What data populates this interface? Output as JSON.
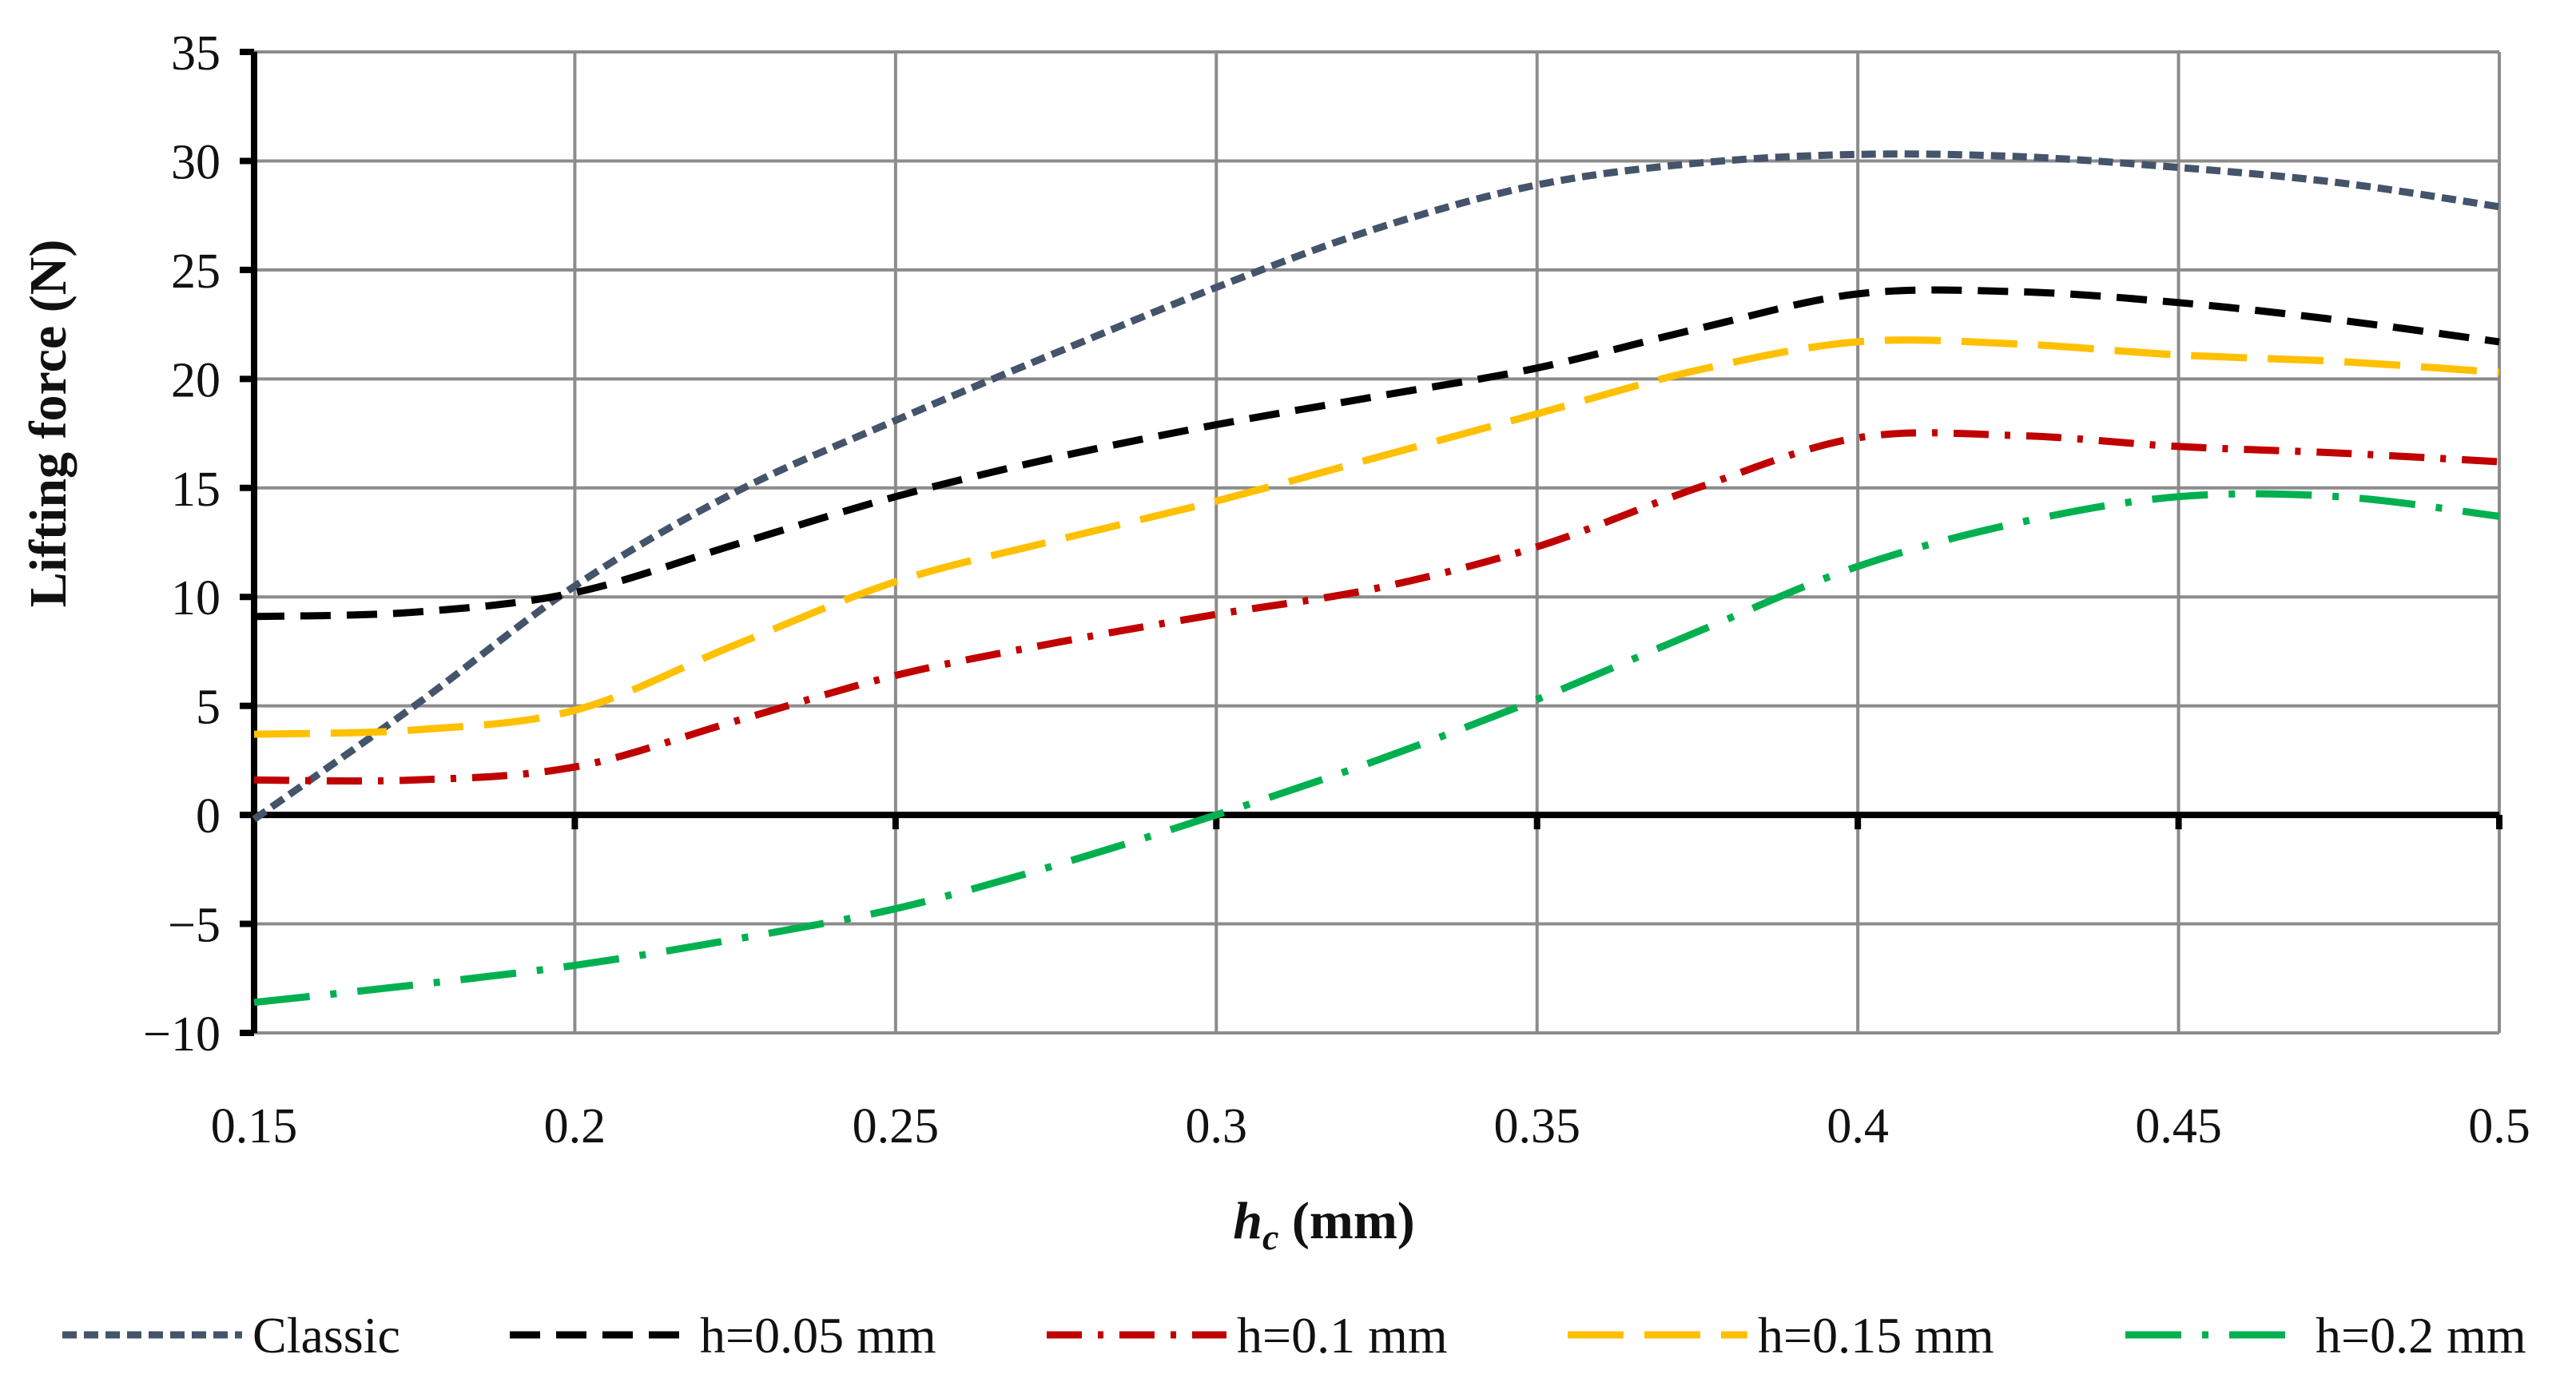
{
  "chart_data": {
    "type": "line",
    "title": "",
    "xlabel_italic": "h",
    "xlabel_sub": "c",
    "xlabel_unit": " (mm)",
    "ylabel": "Lifting force (N)",
    "xlim": [
      0.15,
      0.5
    ],
    "ylim": [
      -10,
      35
    ],
    "xticks": [
      0.15,
      0.2,
      0.25,
      0.3,
      0.35,
      0.4,
      0.45,
      0.5
    ],
    "xtick_labels": [
      "0.15",
      "0.2",
      "0.25",
      "0.3",
      "0.35",
      "0.4",
      "0.45",
      "0.5"
    ],
    "yticks": [
      -10,
      -5,
      0,
      5,
      10,
      15,
      20,
      25,
      30,
      35
    ],
    "ytick_labels": [
      "−10",
      "−5",
      "0",
      "5",
      "10",
      "15",
      "20",
      "25",
      "30",
      "35"
    ],
    "grid": true,
    "legend_position": "bottom",
    "series": [
      {
        "name": "Classic",
        "color": "#44546A",
        "dash": "short-dash",
        "x": [
          0.15,
          0.175,
          0.2,
          0.225,
          0.25,
          0.275,
          0.3,
          0.325,
          0.35,
          0.375,
          0.4,
          0.425,
          0.45,
          0.475,
          0.5
        ],
        "y": [
          -0.2,
          5.0,
          10.5,
          14.8,
          18.1,
          21.2,
          24.2,
          26.9,
          28.9,
          29.9,
          30.3,
          30.2,
          29.7,
          29.0,
          27.9
        ]
      },
      {
        "name": "h=0.05 mm",
        "color": "#000000",
        "dash": "dash",
        "x": [
          0.15,
          0.175,
          0.2,
          0.225,
          0.25,
          0.275,
          0.3,
          0.325,
          0.35,
          0.375,
          0.4,
          0.425,
          0.45,
          0.475,
          0.5
        ],
        "y": [
          9.1,
          9.3,
          10.2,
          12.4,
          14.6,
          16.4,
          17.9,
          19.2,
          20.5,
          22.3,
          23.9,
          24.0,
          23.5,
          22.7,
          21.7
        ]
      },
      {
        "name": "h=0.1 mm",
        "color": "#C00000",
        "dash": "dash-dot-dot",
        "x": [
          0.15,
          0.175,
          0.2,
          0.225,
          0.25,
          0.275,
          0.3,
          0.325,
          0.35,
          0.375,
          0.4,
          0.425,
          0.45,
          0.475,
          0.5
        ],
        "y": [
          1.6,
          1.6,
          2.2,
          4.3,
          6.4,
          7.9,
          9.2,
          10.4,
          12.3,
          15.0,
          17.3,
          17.4,
          16.9,
          16.6,
          16.2
        ]
      },
      {
        "name": "h=0.15 mm",
        "color": "#FFC000",
        "dash": "long-dash",
        "x": [
          0.15,
          0.175,
          0.2,
          0.225,
          0.25,
          0.275,
          0.3,
          0.325,
          0.35,
          0.375,
          0.4,
          0.425,
          0.45,
          0.475,
          0.5
        ],
        "y": [
          3.7,
          3.9,
          4.8,
          7.8,
          10.7,
          12.6,
          14.4,
          16.4,
          18.4,
          20.4,
          21.7,
          21.6,
          21.1,
          20.8,
          20.3
        ]
      },
      {
        "name": "h=0.2 mm",
        "color": "#00B050",
        "dash": "long-dash-dot",
        "x": [
          0.15,
          0.175,
          0.2,
          0.225,
          0.25,
          0.275,
          0.3,
          0.325,
          0.35,
          0.375,
          0.4,
          0.425,
          0.45,
          0.475,
          0.5
        ],
        "y": [
          -8.6,
          -7.8,
          -6.9,
          -5.7,
          -4.3,
          -2.3,
          0.0,
          2.5,
          5.3,
          8.4,
          11.4,
          13.4,
          14.6,
          14.6,
          13.7
        ]
      }
    ]
  }
}
